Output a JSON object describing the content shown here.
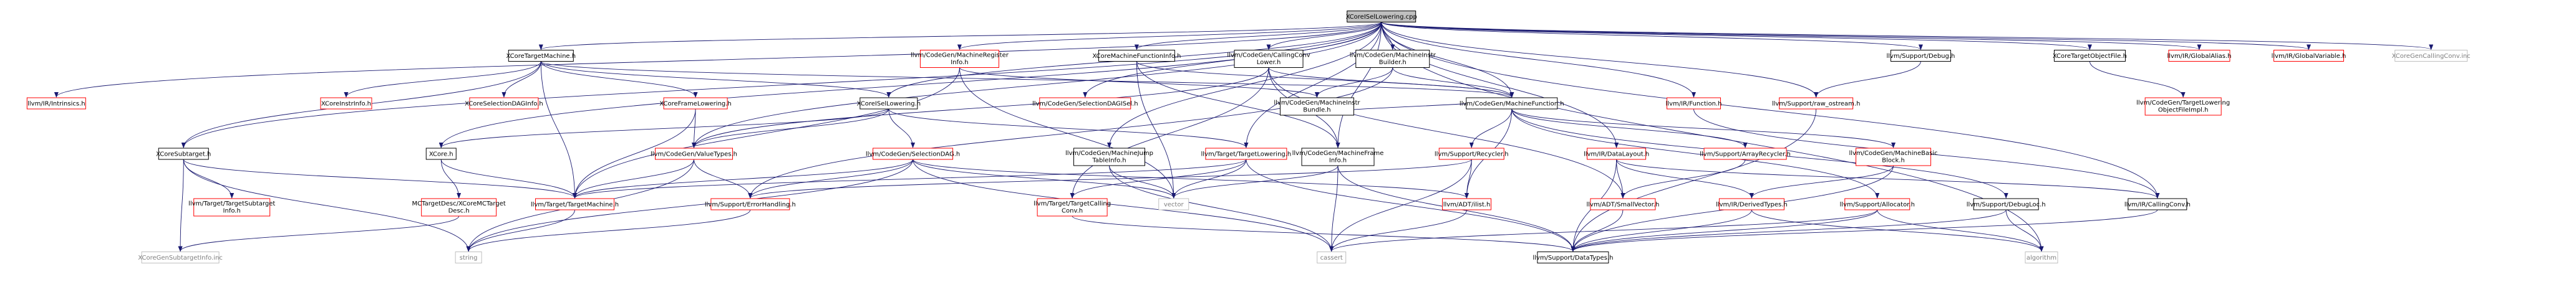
{
  "diagram": {
    "nodes": [
      {
        "id": "root",
        "lines": [
          "XCoreISelLowering.cpp"
        ],
        "style": "root"
      },
      {
        "id": "xcoretm",
        "lines": [
          "XCoreTargetMachine.h"
        ],
        "style": "normal"
      },
      {
        "id": "mri",
        "lines": [
          "llvm/CodeGen/MachineRegister",
          "Info.h"
        ],
        "style": "red"
      },
      {
        "id": "xmfi",
        "lines": [
          "XCoreMachineFunctionInfo.h"
        ],
        "style": "normal"
      },
      {
        "id": "ccl",
        "lines": [
          "llvm/CodeGen/CallingConv",
          "Lower.h"
        ],
        "style": "normal"
      },
      {
        "id": "mib",
        "lines": [
          "llvm/CodeGen/MachineInstr",
          "Builder.h"
        ],
        "style": "normal"
      },
      {
        "id": "debug",
        "lines": [
          "llvm/Support/Debug.h"
        ],
        "style": "normal"
      },
      {
        "id": "xtof",
        "lines": [
          "XCoreTargetObjectFile.h"
        ],
        "style": "normal"
      },
      {
        "id": "galias",
        "lines": [
          "llvm/IR/GlobalAlias.h"
        ],
        "style": "red"
      },
      {
        "id": "gvar",
        "lines": [
          "llvm/IR/GlobalVariable.h"
        ],
        "style": "red"
      },
      {
        "id": "xcc",
        "lines": [
          "XCoreGenCallingConv.inc"
        ],
        "style": "gray"
      },
      {
        "id": "intrinsics",
        "lines": [
          "llvm/IR/Intrinsics.h"
        ],
        "style": "red"
      },
      {
        "id": "xinstr",
        "lines": [
          "XCoreInstrInfo.h"
        ],
        "style": "red"
      },
      {
        "id": "xsdag",
        "lines": [
          "XCoreSelectionDAGInfo.h"
        ],
        "style": "red"
      },
      {
        "id": "xframe",
        "lines": [
          "XCoreFrameLowering.h"
        ],
        "style": "red"
      },
      {
        "id": "xisel",
        "lines": [
          "XCoreISelLowering.h"
        ],
        "style": "normal"
      },
      {
        "id": "sdisel",
        "lines": [
          "llvm/CodeGen/SelectionDAGISel.h"
        ],
        "style": "red"
      },
      {
        "id": "mib2",
        "lines": [
          "llvm/CodeGen/MachineInstr",
          "Bundle.h"
        ],
        "style": "normal"
      },
      {
        "id": "mfunc",
        "lines": [
          "llvm/CodeGen/MachineFunction.h"
        ],
        "style": "normal"
      },
      {
        "id": "function",
        "lines": [
          "llvm/IR/Function.h"
        ],
        "style": "red"
      },
      {
        "id": "rawos",
        "lines": [
          "llvm/Support/raw_ostream.h"
        ],
        "style": "red"
      },
      {
        "id": "tlof",
        "lines": [
          "llvm/CodeGen/TargetLowering",
          "ObjectFileImpl.h"
        ],
        "style": "red"
      },
      {
        "id": "xsub",
        "lines": [
          "XCoreSubtarget.h"
        ],
        "style": "normal"
      },
      {
        "id": "xcore",
        "lines": [
          "XCore.h"
        ],
        "style": "normal"
      },
      {
        "id": "valuetypes",
        "lines": [
          "llvm/CodeGen/ValueTypes.h"
        ],
        "style": "red"
      },
      {
        "id": "sdag",
        "lines": [
          "llvm/CodeGen/SelectionDAG.h"
        ],
        "style": "red"
      },
      {
        "id": "mjt",
        "lines": [
          "llvm/CodeGen/MachineJump",
          "TableInfo.h"
        ],
        "style": "normal"
      },
      {
        "id": "tlower",
        "lines": [
          "llvm/Target/TargetLowering.h"
        ],
        "style": "red"
      },
      {
        "id": "mframe",
        "lines": [
          "llvm/CodeGen/MachineFrame",
          "Info.h"
        ],
        "style": "normal"
      },
      {
        "id": "recycler",
        "lines": [
          "llvm/Support/Recycler.h"
        ],
        "style": "red"
      },
      {
        "id": "dlayout",
        "lines": [
          "llvm/IR/DataLayout.h"
        ],
        "style": "red"
      },
      {
        "id": "arecycler",
        "lines": [
          "llvm/Support/ArrayRecycler.h"
        ],
        "style": "red"
      },
      {
        "id": "mbb",
        "lines": [
          "llvm/CodeGen/MachineBasic",
          "Block.h"
        ],
        "style": "red"
      },
      {
        "id": "tsubinfo",
        "lines": [
          "llvm/Target/TargetSubtarget",
          "Info.h"
        ],
        "style": "red"
      },
      {
        "id": "mctd",
        "lines": [
          "MCTargetDesc/XCoreMCTarget",
          "Desc.h"
        ],
        "style": "red"
      },
      {
        "id": "ttm",
        "lines": [
          "llvm/Target/TargetMachine.h"
        ],
        "style": "red"
      },
      {
        "id": "errh",
        "lines": [
          "llvm/Support/ErrorHandling.h"
        ],
        "style": "red"
      },
      {
        "id": "tcc",
        "lines": [
          "llvm/Target/TargetCalling",
          "Conv.h"
        ],
        "style": "red"
      },
      {
        "id": "vector",
        "lines": [
          "vector"
        ],
        "style": "gray"
      },
      {
        "id": "ilist",
        "lines": [
          "llvm/ADT/ilist.h"
        ],
        "style": "red"
      },
      {
        "id": "smallvec",
        "lines": [
          "llvm/ADT/SmallVector.h"
        ],
        "style": "red"
      },
      {
        "id": "dtypes",
        "lines": [
          "llvm/IR/DerivedTypes.h"
        ],
        "style": "red"
      },
      {
        "id": "alloc",
        "lines": [
          "llvm/Support/Allocator.h"
        ],
        "style": "red"
      },
      {
        "id": "dloc",
        "lines": [
          "llvm/Support/DebugLoc.h"
        ],
        "style": "normal"
      },
      {
        "id": "callconv",
        "lines": [
          "llvm/IR/CallingConv.h"
        ],
        "style": "normal"
      },
      {
        "id": "xsubinc",
        "lines": [
          "XCoreGenSubtargetInfo.inc"
        ],
        "style": "gray"
      },
      {
        "id": "string",
        "lines": [
          "string"
        ],
        "style": "gray"
      },
      {
        "id": "cassert",
        "lines": [
          "cassert"
        ],
        "style": "gray"
      },
      {
        "id": "datatypes",
        "lines": [
          "llvm/Support/DataTypes.h"
        ],
        "style": "normal"
      },
      {
        "id": "algorithm",
        "lines": [
          "algorithm"
        ],
        "style": "gray"
      }
    ],
    "edges": [
      [
        "root",
        "intrinsics"
      ],
      [
        "root",
        "xsub"
      ],
      [
        "root",
        "xcoretm"
      ],
      [
        "root",
        "xisel"
      ],
      [
        "root",
        "mri"
      ],
      [
        "root",
        "xmfi"
      ],
      [
        "root",
        "ccl"
      ],
      [
        "root",
        "mib"
      ],
      [
        "root",
        "mfunc"
      ],
      [
        "root",
        "mframe"
      ],
      [
        "root",
        "mjt"
      ],
      [
        "root",
        "valuetypes"
      ],
      [
        "root",
        "sdisel"
      ],
      [
        "root",
        "callconv"
      ],
      [
        "root",
        "function"
      ],
      [
        "root",
        "debug"
      ],
      [
        "root",
        "rawos"
      ],
      [
        "root",
        "xtof"
      ],
      [
        "root",
        "galias"
      ],
      [
        "root",
        "gvar"
      ],
      [
        "root",
        "xcc"
      ],
      [
        "root",
        "algorithm"
      ],
      [
        "root",
        "xcore"
      ],
      [
        "root",
        "tlower"
      ],
      [
        "root",
        "dlayout"
      ],
      [
        "xcoretm",
        "xinstr"
      ],
      [
        "xcoretm",
        "xsdag"
      ],
      [
        "xcoretm",
        "xframe"
      ],
      [
        "xcoretm",
        "xisel"
      ],
      [
        "xcoretm",
        "xsub"
      ],
      [
        "xcoretm",
        "ttm"
      ],
      [
        "xcoretm",
        "mfunc"
      ],
      [
        "mri",
        "mib2"
      ],
      [
        "mri",
        "vector"
      ],
      [
        "mri",
        "ttm"
      ],
      [
        "xmfi",
        "mframe"
      ],
      [
        "xmfi",
        "mfunc"
      ],
      [
        "xmfi",
        "vector"
      ],
      [
        "ccl",
        "mframe"
      ],
      [
        "ccl",
        "mfunc"
      ],
      [
        "ccl",
        "tcc"
      ],
      [
        "ccl",
        "valuetypes"
      ],
      [
        "ccl",
        "smallvec"
      ],
      [
        "mib",
        "mib2"
      ],
      [
        "mib",
        "mfunc"
      ],
      [
        "mib",
        "errh"
      ],
      [
        "debug",
        "rawos"
      ],
      [
        "xtof",
        "tlof"
      ],
      [
        "function",
        "callconv"
      ],
      [
        "rawos",
        "datatypes"
      ],
      [
        "xframe",
        "ttm"
      ],
      [
        "xframe",
        "valuetypes"
      ],
      [
        "xisel",
        "xcore"
      ],
      [
        "xisel",
        "sdag"
      ],
      [
        "xisel",
        "tlower"
      ],
      [
        "xisel",
        "valuetypes"
      ],
      [
        "mib2",
        "mfunc"
      ],
      [
        "mfunc",
        "recycler"
      ],
      [
        "mfunc",
        "arecycler"
      ],
      [
        "mfunc",
        "mbb"
      ],
      [
        "mfunc",
        "dloc"
      ],
      [
        "mfunc",
        "ilist"
      ],
      [
        "mfunc",
        "alloc"
      ],
      [
        "xsub",
        "tsubinfo"
      ],
      [
        "xsub",
        "xsubinc"
      ],
      [
        "xsub",
        "ttm"
      ],
      [
        "xsub",
        "string"
      ],
      [
        "xcore",
        "mctd"
      ],
      [
        "xcore",
        "ttm"
      ],
      [
        "valuetypes",
        "errh"
      ],
      [
        "valuetypes",
        "string"
      ],
      [
        "valuetypes",
        "ttm"
      ],
      [
        "sdag",
        "ttm"
      ],
      [
        "sdag",
        "errh"
      ],
      [
        "sdag",
        "vector"
      ],
      [
        "sdag",
        "ilist"
      ],
      [
        "sdag",
        "cassert"
      ],
      [
        "sdag",
        "string"
      ],
      [
        "mjt",
        "vector"
      ],
      [
        "mjt",
        "cassert"
      ],
      [
        "tlower",
        "tcc"
      ],
      [
        "tlower",
        "vector"
      ],
      [
        "tlower",
        "ttm"
      ],
      [
        "tlower",
        "datatypes"
      ],
      [
        "mframe",
        "vector"
      ],
      [
        "mframe",
        "cassert"
      ],
      [
        "mframe",
        "datatypes"
      ],
      [
        "recycler",
        "ilist"
      ],
      [
        "recycler",
        "errh"
      ],
      [
        "recycler",
        "cassert"
      ],
      [
        "dlayout",
        "smallvec"
      ],
      [
        "dlayout",
        "dtypes"
      ],
      [
        "dlayout",
        "callconv"
      ],
      [
        "dlayout",
        "datatypes"
      ],
      [
        "arecycler",
        "smallvec"
      ],
      [
        "mbb",
        "dtypes"
      ],
      [
        "mbb",
        "datatypes"
      ],
      [
        "mctd",
        "xsubinc"
      ],
      [
        "ttm",
        "string"
      ],
      [
        "errh",
        "string"
      ],
      [
        "tcc",
        "datatypes"
      ],
      [
        "ilist",
        "cassert"
      ],
      [
        "smallvec",
        "datatypes"
      ],
      [
        "dtypes",
        "datatypes"
      ],
      [
        "dtypes",
        "algorithm"
      ],
      [
        "alloc",
        "datatypes"
      ],
      [
        "alloc",
        "algorithm"
      ],
      [
        "alloc",
        "cassert"
      ],
      [
        "dloc",
        "datatypes"
      ],
      [
        "dloc",
        "algorithm"
      ],
      [
        "callconv",
        "datatypes"
      ]
    ]
  },
  "colors": {
    "normal_border": "#000000",
    "red_border": "#ff0000",
    "gray_border": "#bfbfbf",
    "gray_text": "#7f7f7f",
    "root_fill": "#bfbfbf",
    "edge": "#191970",
    "text": "#000000"
  }
}
